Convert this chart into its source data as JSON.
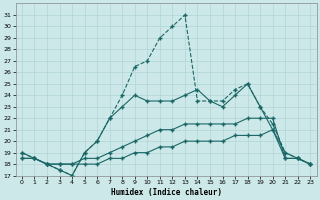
{
  "xlabel": "Humidex (Indice chaleur)",
  "bg_color": "#cde8e8",
  "grid_color": "#b0d4d4",
  "line_color": "#1a6666",
  "xlim": [
    -0.5,
    23.5
  ],
  "ylim": [
    17,
    32
  ],
  "yticks": [
    17,
    18,
    19,
    20,
    21,
    22,
    23,
    24,
    25,
    26,
    27,
    28,
    29,
    30,
    31
  ],
  "xticks": [
    0,
    1,
    2,
    3,
    4,
    5,
    6,
    7,
    8,
    9,
    10,
    11,
    12,
    13,
    14,
    15,
    16,
    17,
    18,
    19,
    20,
    21,
    22,
    23
  ],
  "lines": [
    {
      "x": [
        0,
        1,
        2,
        3,
        4,
        5,
        6,
        7,
        8,
        9,
        10,
        11,
        12,
        13,
        14,
        15,
        16,
        17,
        18,
        19,
        20,
        21,
        22,
        23
      ],
      "y": [
        19,
        18.5,
        18,
        17.5,
        17,
        19,
        20,
        22,
        24,
        26.5,
        27,
        29,
        30,
        31,
        23.5,
        23.5,
        23.5,
        24.5,
        25,
        23,
        21.5,
        19,
        18.5,
        18
      ],
      "ls": "--"
    },
    {
      "x": [
        0,
        1,
        2,
        3,
        4,
        5,
        6,
        7,
        8,
        9,
        10,
        11,
        12,
        13,
        14,
        15,
        16,
        17,
        18,
        19,
        20,
        21,
        22,
        23
      ],
      "y": [
        19,
        18.5,
        18,
        17.5,
        17,
        19,
        20,
        22,
        23,
        24,
        23.5,
        23.5,
        23.5,
        24,
        24.5,
        23.5,
        23,
        24,
        25,
        23,
        21,
        19,
        18.5,
        18
      ],
      "ls": "-"
    },
    {
      "x": [
        0,
        1,
        2,
        3,
        4,
        5,
        6,
        7,
        8,
        9,
        10,
        11,
        12,
        13,
        14,
        15,
        16,
        17,
        18,
        19,
        20,
        21,
        22,
        23
      ],
      "y": [
        18.5,
        18.5,
        18,
        18,
        18,
        18.5,
        18.5,
        19,
        19.5,
        20,
        20.5,
        21,
        21,
        21.5,
        21.5,
        21.5,
        21.5,
        21.5,
        22,
        22,
        22,
        18.5,
        18.5,
        18
      ],
      "ls": "-"
    },
    {
      "x": [
        0,
        1,
        2,
        3,
        4,
        5,
        6,
        7,
        8,
        9,
        10,
        11,
        12,
        13,
        14,
        15,
        16,
        17,
        18,
        19,
        20,
        21,
        22,
        23
      ],
      "y": [
        18.5,
        18.5,
        18,
        18,
        18,
        18,
        18,
        18.5,
        18.5,
        19,
        19,
        19.5,
        19.5,
        20,
        20,
        20,
        20,
        20.5,
        20.5,
        20.5,
        21,
        18.5,
        18.5,
        18
      ],
      "ls": "-"
    }
  ]
}
